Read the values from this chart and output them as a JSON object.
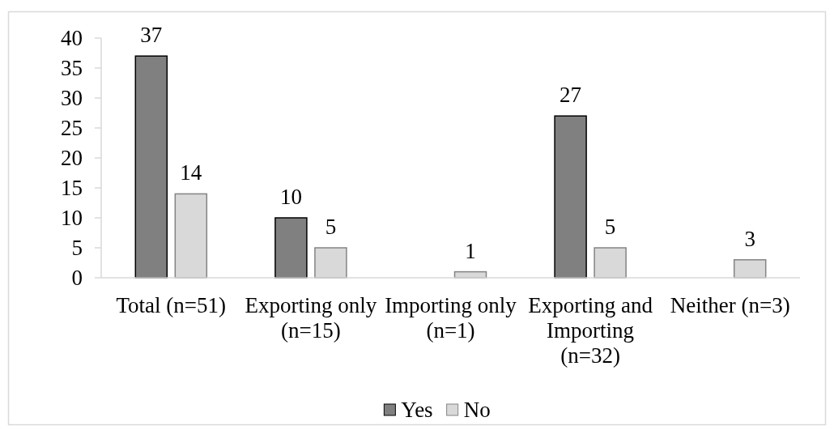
{
  "chart_data": {
    "type": "bar",
    "categories": [
      "Total (n=51)",
      "Exporting only (n=15)",
      "Importing only (n=1)",
      "Exporting and Importing (n=32)",
      "Neither (n=3)"
    ],
    "series": [
      {
        "name": "Yes",
        "color": "#808080",
        "values": [
          37,
          10,
          null,
          27,
          null
        ]
      },
      {
        "name": "No",
        "color": "#d9d9d9",
        "values": [
          14,
          5,
          1,
          5,
          3
        ]
      }
    ],
    "ylim": [
      0,
      40
    ],
    "yticks": [
      0,
      5,
      10,
      15,
      20,
      25,
      30,
      35,
      40
    ],
    "data_labels": true,
    "legend": "bottom",
    "grid": false
  }
}
